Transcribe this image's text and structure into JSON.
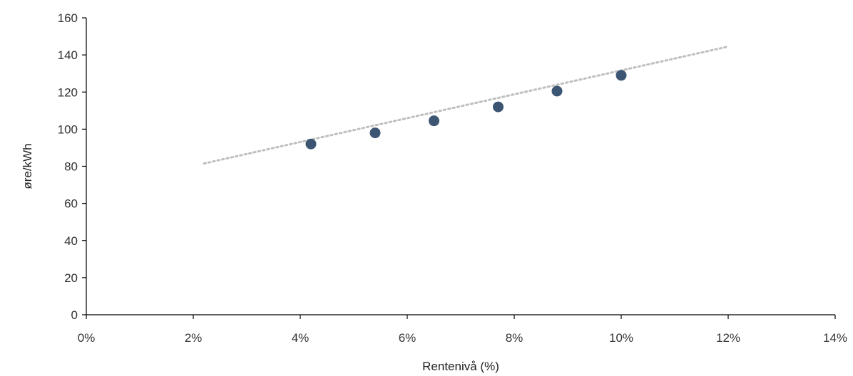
{
  "chart_data": {
    "type": "scatter",
    "title": "",
    "xlabel": "Rentenivå (%)",
    "ylabel": "øre/kWh",
    "xlim": [
      0,
      14
    ],
    "ylim": [
      0,
      160
    ],
    "x_ticks": [
      0,
      2,
      4,
      6,
      8,
      10,
      12,
      14
    ],
    "x_tick_labels": [
      "0%",
      "2%",
      "4%",
      "6%",
      "8%",
      "10%",
      "12%",
      "14%"
    ],
    "y_ticks": [
      0,
      20,
      40,
      60,
      80,
      100,
      120,
      140,
      160
    ],
    "y_tick_labels": [
      "0",
      "20",
      "40",
      "60",
      "80",
      "100",
      "120",
      "140",
      "160"
    ],
    "grid": false,
    "legend": "none",
    "series": [
      {
        "x": [
          4.2,
          5.4,
          6.5,
          7.7,
          8.8,
          10.0
        ],
        "y": [
          92,
          98,
          104.5,
          112,
          120.5,
          129
        ],
        "marker_color": "#3b5573"
      }
    ],
    "trendline": {
      "style": "dotted",
      "color": "#bfbfbf",
      "x": [
        2.2,
        12.0
      ],
      "y": [
        81.5,
        144.5
      ]
    }
  }
}
